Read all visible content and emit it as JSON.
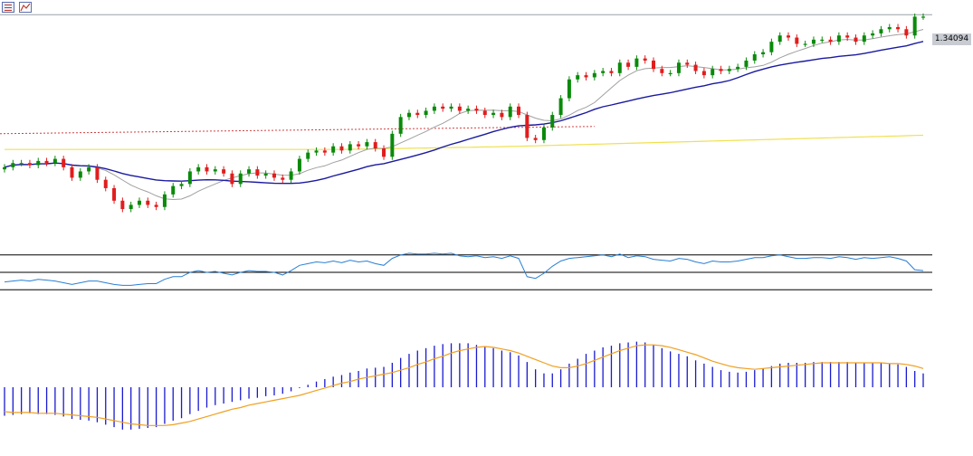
{
  "toolbar": {
    "icons": [
      "list-layout-icon",
      "chart-properties-icon"
    ]
  },
  "price_label": "1.34094",
  "colors": {
    "bull_candle": "#0a8a0a",
    "bear_candle": "#e11d1d",
    "ma_fast": "#a0a0a0",
    "ma_mid": "#1a1aa0",
    "ma_slow": "#f0e050",
    "dotted_level": "#d04040",
    "rsi_line": "#2a7fd4",
    "macd_hist": "#1a1ad0",
    "macd_signal": "#f0a020",
    "current_price_line": "#9aa0a8"
  },
  "chart_data": [
    {
      "type": "candlestick",
      "current_price": 1.34094,
      "closes": [
        1.268,
        1.27,
        1.27,
        1.269,
        1.271,
        1.27,
        1.272,
        1.268,
        1.263,
        1.266,
        1.268,
        1.262,
        1.258,
        1.252,
        1.248,
        1.25,
        1.252,
        1.25,
        1.249,
        1.255,
        1.259,
        1.26,
        1.266,
        1.268,
        1.266,
        1.267,
        1.265,
        1.26,
        1.265,
        1.267,
        1.264,
        1.265,
        1.263,
        1.262,
        1.266,
        1.272,
        1.275,
        1.276,
        1.275,
        1.278,
        1.276,
        1.279,
        1.278,
        1.28,
        1.277,
        1.273,
        1.284,
        1.292,
        1.294,
        1.293,
        1.295,
        1.297,
        1.296,
        1.297,
        1.295,
        1.296,
        1.295,
        1.293,
        1.294,
        1.292,
        1.297,
        1.293,
        1.282,
        1.281,
        1.287,
        1.293,
        1.301,
        1.31,
        1.312,
        1.311,
        1.313,
        1.314,
        1.313,
        1.318,
        1.316,
        1.32,
        1.319,
        1.315,
        1.313,
        1.313,
        1.318,
        1.317,
        1.314,
        1.312,
        1.315,
        1.314,
        1.315,
        1.316,
        1.319,
        1.322,
        1.323,
        1.328,
        1.331,
        1.33,
        1.327,
        1.327,
        1.329,
        1.329,
        1.328,
        1.331,
        1.33,
        1.328,
        1.331,
        1.332,
        1.334,
        1.335,
        1.334,
        1.331,
        1.34,
        1.34
      ],
      "moving_averages": [
        "gray",
        "blue",
        "yellow"
      ],
      "dotted_level": 1.2875
    },
    {
      "type": "line",
      "indicator": "RSI",
      "levels": [
        70,
        50,
        30
      ],
      "ylim": [
        25,
        75
      ],
      "values": [
        39,
        40,
        41,
        40,
        42,
        41,
        40,
        38,
        36,
        38,
        40,
        40,
        38,
        36,
        35,
        35,
        36,
        37,
        37,
        42,
        45,
        45,
        50,
        52,
        50,
        51,
        49,
        47,
        50,
        52,
        51,
        51,
        50,
        47,
        52,
        58,
        60,
        62,
        61,
        63,
        61,
        64,
        62,
        63,
        60,
        58,
        66,
        70,
        72,
        71,
        71,
        72,
        71,
        72,
        69,
        68,
        69,
        67,
        68,
        66,
        69,
        66,
        45,
        43,
        49,
        57,
        63,
        66,
        67,
        68,
        69,
        70,
        68,
        71,
        67,
        69,
        68,
        65,
        64,
        63,
        66,
        65,
        62,
        60,
        63,
        62,
        62,
        63,
        65,
        67,
        67,
        69,
        70,
        68,
        66,
        66,
        67,
        67,
        66,
        68,
        67,
        65,
        67,
        66,
        67,
        68,
        66,
        63,
        53,
        52
      ]
    },
    {
      "type": "bar",
      "indicator": "MACD",
      "histogram": [
        -0.0035,
        -0.0034,
        -0.0033,
        -0.0032,
        -0.0033,
        -0.0033,
        -0.0034,
        -0.0036,
        -0.0039,
        -0.004,
        -0.0041,
        -0.0043,
        -0.0046,
        -0.0049,
        -0.0052,
        -0.0052,
        -0.0051,
        -0.005,
        -0.0049,
        -0.0045,
        -0.0041,
        -0.0038,
        -0.0033,
        -0.0029,
        -0.0025,
        -0.0022,
        -0.002,
        -0.0018,
        -0.0016,
        -0.0014,
        -0.0013,
        -0.0011,
        -0.001,
        -0.0008,
        -0.0005,
        -0.0001,
        0.0003,
        0.0007,
        0.001,
        0.0013,
        0.0015,
        0.0018,
        0.002,
        0.0023,
        0.0024,
        0.0025,
        0.003,
        0.0036,
        0.0041,
        0.0045,
        0.0048,
        0.0051,
        0.0053,
        0.0054,
        0.0054,
        0.0054,
        0.0052,
        0.005,
        0.0048,
        0.0045,
        0.0043,
        0.0039,
        0.0031,
        0.0022,
        0.0017,
        0.0017,
        0.0022,
        0.0029,
        0.0035,
        0.0041,
        0.0045,
        0.0049,
        0.0051,
        0.0054,
        0.0055,
        0.0056,
        0.0055,
        0.0052,
        0.0048,
        0.0044,
        0.0041,
        0.0038,
        0.0033,
        0.0029,
        0.0025,
        0.0021,
        0.0019,
        0.0018,
        0.0019,
        0.0021,
        0.0023,
        0.0026,
        0.0029,
        0.003,
        0.003,
        0.003,
        0.0031,
        0.0031,
        0.0031,
        0.0031,
        0.0031,
        0.003,
        0.003,
        0.003,
        0.003,
        0.0029,
        0.0028,
        0.0025,
        0.002,
        0.0017
      ],
      "signal": [
        -0.003,
        -0.0031,
        -0.0031,
        -0.0031,
        -0.0032,
        -0.0032,
        -0.0032,
        -0.0033,
        -0.0034,
        -0.0035,
        -0.0036,
        -0.0037,
        -0.0039,
        -0.0041,
        -0.0043,
        -0.0045,
        -0.0046,
        -0.0047,
        -0.0047,
        -0.0047,
        -0.0046,
        -0.0044,
        -0.0042,
        -0.0039,
        -0.0036,
        -0.0033,
        -0.003,
        -0.0027,
        -0.0025,
        -0.0022,
        -0.002,
        -0.0018,
        -0.0016,
        -0.0014,
        -0.0012,
        -0.001,
        -0.0007,
        -0.0004,
        -0.0001,
        0.0002,
        0.0005,
        0.0007,
        0.001,
        0.0012,
        0.0014,
        0.0016,
        0.0018,
        0.0021,
        0.0024,
        0.0028,
        0.0031,
        0.0035,
        0.0038,
        0.0042,
        0.0045,
        0.0047,
        0.0049,
        0.005,
        0.0049,
        0.0047,
        0.0045,
        0.0042,
        0.0038,
        0.0034,
        0.003,
        0.0026,
        0.0024,
        0.0024,
        0.0026,
        0.0029,
        0.0033,
        0.0037,
        0.0041,
        0.0045,
        0.0048,
        0.0051,
        0.0052,
        0.0052,
        0.0051,
        0.0049,
        0.0046,
        0.0043,
        0.004,
        0.0036,
        0.0032,
        0.0029,
        0.0026,
        0.0024,
        0.0023,
        0.0022,
        0.0023,
        0.0024,
        0.0025,
        0.0026,
        0.0027,
        0.0028,
        0.0029,
        0.003,
        0.003,
        0.003,
        0.003,
        0.003,
        0.003,
        0.003,
        0.003,
        0.0029,
        0.0029,
        0.0028,
        0.0026,
        0.0023
      ]
    }
  ]
}
